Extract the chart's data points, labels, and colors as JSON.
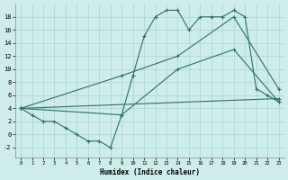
{
  "xlabel": "Humidex (Indice chaleur)",
  "bg_color": "#ceecea",
  "grid_color": "#aed8d4",
  "line_color": "#2d7068",
  "xlim": [
    -0.5,
    23.5
  ],
  "ylim": [
    -3.5,
    20
  ],
  "xticks": [
    0,
    1,
    2,
    3,
    4,
    5,
    6,
    7,
    8,
    9,
    10,
    11,
    12,
    13,
    14,
    15,
    16,
    17,
    18,
    19,
    20,
    21,
    22,
    23
  ],
  "yticks": [
    -2,
    0,
    2,
    4,
    6,
    8,
    10,
    12,
    14,
    16,
    18
  ],
  "line1_x": [
    0,
    1,
    2,
    3,
    4,
    5,
    6,
    7,
    8,
    9,
    10,
    11,
    12,
    13,
    14,
    15,
    16,
    17,
    18,
    19,
    20,
    21,
    22,
    23
  ],
  "line1_y": [
    4,
    3,
    2,
    2,
    1,
    0,
    -1,
    -1,
    -2,
    3,
    9,
    15,
    18,
    19,
    19,
    16,
    18,
    18,
    18,
    19,
    18,
    7,
    6,
    5
  ],
  "line2_x": [
    0,
    9,
    14,
    19,
    23
  ],
  "line2_y": [
    4,
    9,
    12,
    18,
    7
  ],
  "line3_x": [
    0,
    9,
    14,
    19,
    23
  ],
  "line3_y": [
    4,
    3,
    10,
    13,
    5
  ],
  "line4_x": [
    0,
    23
  ],
  "line4_y": [
    4,
    5.5
  ]
}
